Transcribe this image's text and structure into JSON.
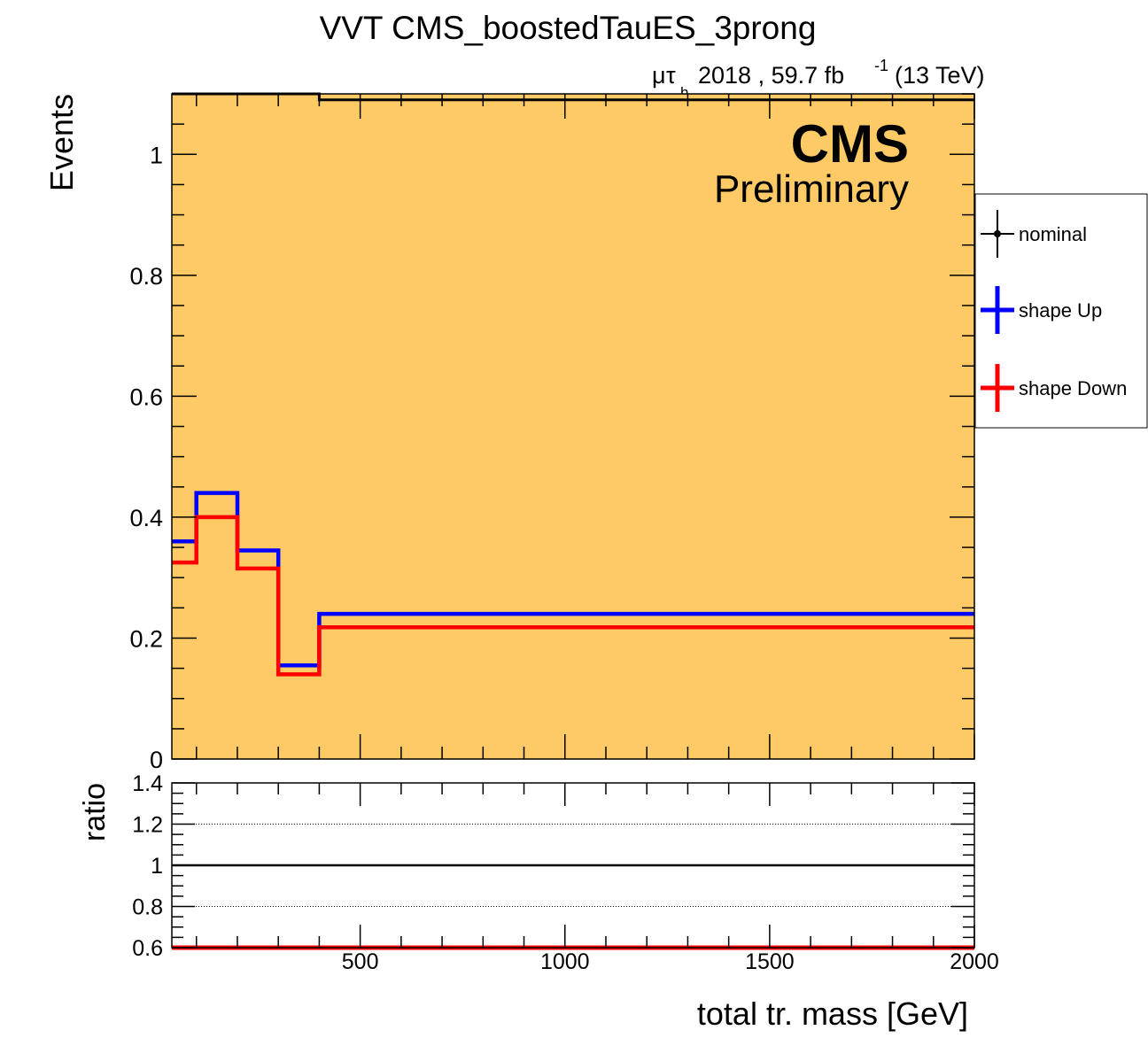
{
  "chart_data": {
    "type": "line",
    "title": "VVT CMS_boostedTauES_3prong",
    "lumi": {
      "channel_mu": "μ",
      "channel_tau": "τ",
      "channel_sub": "h",
      "text": "2018 , 59.7 fb",
      "sup": "-1",
      "energy": "(13 TeV)"
    },
    "cms_label": "CMS",
    "cms_sublabel": "Preliminary",
    "xlabel": "total tr. mass [GeV]",
    "xlim": [
      40,
      2000
    ],
    "xticks": [
      {
        "value": 500,
        "label": "500"
      },
      {
        "value": 1000,
        "label": "1000"
      },
      {
        "value": 1500,
        "label": "1500"
      },
      {
        "value": 2000,
        "label": "2000"
      }
    ],
    "main": {
      "ylabel": "Events",
      "ylim": [
        0,
        1.1
      ],
      "yticks": [
        {
          "value": 0,
          "label": "0"
        },
        {
          "value": 0.2,
          "label": "0.2"
        },
        {
          "value": 0.4,
          "label": "0.4"
        },
        {
          "value": 0.6,
          "label": "0.6"
        },
        {
          "value": 0.8,
          "label": "0.8"
        },
        {
          "value": 1,
          "label": "1"
        }
      ],
      "fill_color": "#fdca66",
      "bin_edges": [
        40,
        100,
        200,
        300,
        400,
        2000
      ],
      "series": [
        {
          "name": "nominal",
          "color": "#000000",
          "values": [
            1.1,
            1.1,
            1.1,
            1.1,
            1.09
          ]
        },
        {
          "name": "shape Up",
          "color": "#0000ff",
          "values": [
            0.36,
            0.44,
            0.345,
            0.155,
            0.24
          ]
        },
        {
          "name": "shape Down",
          "color": "#ff0000",
          "values": [
            0.325,
            0.4,
            0.315,
            0.14,
            0.218
          ]
        }
      ]
    },
    "ratio": {
      "ylabel": "ratio",
      "ylim": [
        0.6,
        1.4
      ],
      "yticks": [
        {
          "value": 0.6,
          "label": "0.6"
        },
        {
          "value": 0.8,
          "label": "0.8"
        },
        {
          "value": 1,
          "label": "1"
        },
        {
          "value": 1.2,
          "label": "1.2"
        },
        {
          "value": 1.4,
          "label": "1.4"
        }
      ],
      "gridlines": [
        0.8,
        1.2
      ],
      "series": [
        {
          "name": "nominal",
          "color": "#000000",
          "values": [
            1,
            1,
            1,
            1,
            1
          ]
        },
        {
          "name": "shape Down",
          "color": "#ff0000",
          "values": [
            0.6,
            0.6,
            0.6,
            0.6,
            0.6
          ]
        }
      ]
    },
    "legend": {
      "placement": "right",
      "entries": [
        {
          "label": "nominal",
          "color": "#000000",
          "marker": true
        },
        {
          "label": "shape Up",
          "color": "#0000ff",
          "marker": false
        },
        {
          "label": "shape Down",
          "color": "#ff0000",
          "marker": false
        }
      ]
    }
  }
}
